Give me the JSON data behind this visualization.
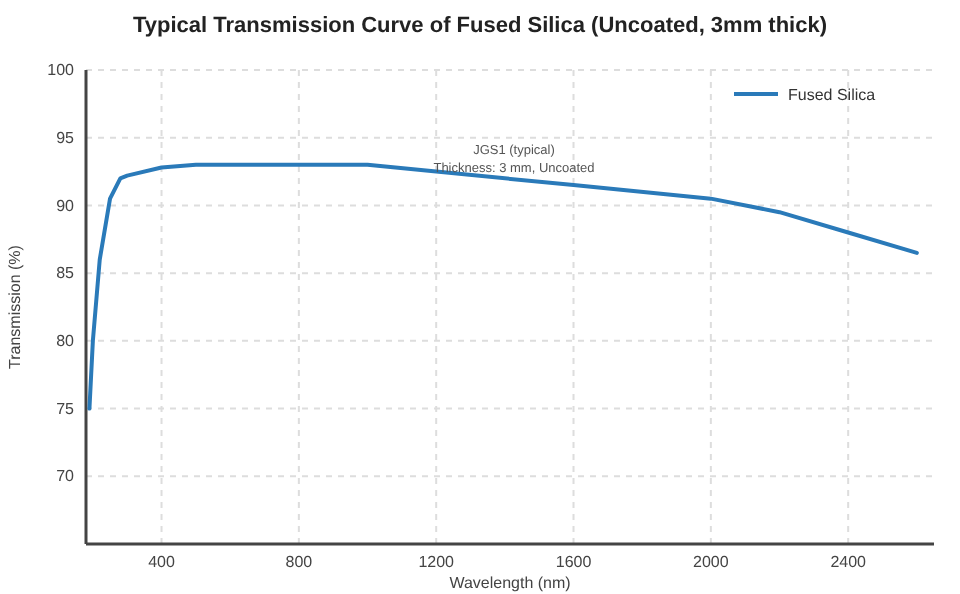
{
  "chart_data": {
    "type": "line",
    "title": "Typical Transmission Curve of Fused Silica (Uncoated, 3mm thick)",
    "xlabel": "Wavelength (nm)",
    "ylabel": "Transmission (%)",
    "x": [
      190,
      200,
      220,
      250,
      280,
      300,
      400,
      500,
      1000,
      1200,
      1600,
      2000,
      2200,
      2400,
      2600
    ],
    "series": [
      {
        "name": "Fused Silica",
        "color": "#2a7ab9",
        "values": [
          75,
          80,
          86,
          90.5,
          92,
          92.2,
          92.8,
          93,
          93,
          92.5,
          91.5,
          90.5,
          89.5,
          88,
          86.5
        ]
      }
    ],
    "xlim": [
      180,
      2650
    ],
    "xticks": [
      400,
      800,
      1200,
      1600,
      2000,
      2400
    ],
    "ylim": [
      65,
      100
    ],
    "yticks": [
      70,
      75,
      80,
      85,
      90,
      95,
      100
    ],
    "grid": true,
    "legend": "top right",
    "marker": "none",
    "line_style": "solid",
    "annotations": [
      "JGS1 (typical)",
      "Thickness: 3 mm, Uncoated"
    ]
  }
}
